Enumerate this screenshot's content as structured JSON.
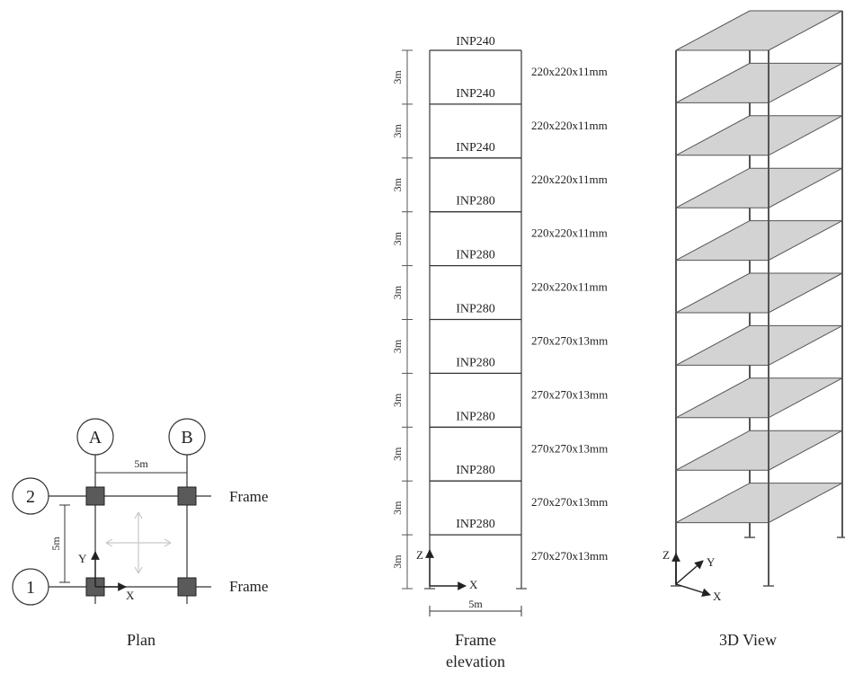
{
  "plan": {
    "caption": "Plan",
    "grid_a": "A",
    "grid_b": "B",
    "grid_1": "1",
    "grid_2": "2",
    "span_label": "5m",
    "depth_label": "5m",
    "frame_top_label": "Frame",
    "frame_bottom_label": "Frame",
    "axis_x": "X",
    "axis_y": "Y"
  },
  "elevation": {
    "caption_line1": "Frame",
    "caption_line2": "elevation",
    "beams": [
      "INP240",
      "INP240",
      "INP240",
      "INP280",
      "INP280",
      "INP280",
      "INP280",
      "INP280",
      "INP280",
      "INP280"
    ],
    "columns": [
      "220x220x11mm",
      "220x220x11mm",
      "220x220x11mm",
      "220x220x11mm",
      "220x220x11mm",
      "270x270x13mm",
      "270x270x13mm",
      "270x270x13mm",
      "270x270x13mm",
      "270x270x13mm"
    ],
    "storey_height_label": "3m",
    "storey_count": 10,
    "span_label": "5m",
    "axis_x": "X",
    "axis_z": "Z"
  },
  "view3d": {
    "caption": "3D View",
    "axis_x": "X",
    "axis_y": "Y",
    "axis_z": "Z"
  },
  "colors": {
    "line": "#333333",
    "slab_fill": "#d3d3d3",
    "column_fill": "#5a5a5a"
  }
}
